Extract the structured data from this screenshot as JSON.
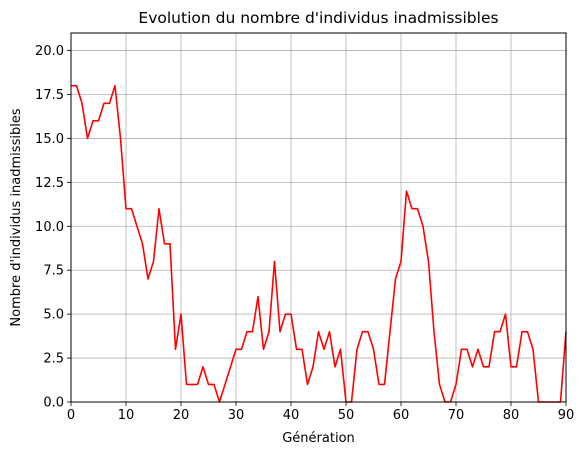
{
  "chart_data": {
    "type": "line",
    "title": "Evolution du nombre d'individus inadmissibles",
    "xlabel": "Génération",
    "ylabel": "Nombre d'individus inadmissibles",
    "xlim": [
      0,
      90
    ],
    "ylim": [
      0,
      21
    ],
    "grid": true,
    "x_ticks": [
      "0",
      "10",
      "20",
      "30",
      "40",
      "50",
      "60",
      "70",
      "80",
      "90"
    ],
    "x_tick_values": [
      0,
      10,
      20,
      30,
      40,
      50,
      60,
      70,
      80,
      90
    ],
    "y_ticks": [
      "0.0",
      "2.5",
      "5.0",
      "7.5",
      "10.0",
      "12.5",
      "15.0",
      "17.5",
      "20.0"
    ],
    "y_tick_values": [
      0,
      2.5,
      5,
      7.5,
      10,
      12.5,
      15,
      17.5,
      20
    ],
    "series": [
      {
        "color": "#ff0000",
        "x": [
          0,
          1,
          2,
          3,
          4,
          5,
          6,
          7,
          8,
          9,
          10,
          11,
          12,
          13,
          14,
          15,
          16,
          17,
          18,
          19,
          20,
          21,
          22,
          23,
          24,
          25,
          26,
          27,
          28,
          29,
          30,
          31,
          32,
          33,
          34,
          35,
          36,
          37,
          38,
          39,
          40,
          41,
          42,
          43,
          44,
          45,
          46,
          47,
          48,
          49,
          50,
          51,
          52,
          53,
          54,
          55,
          56,
          57,
          58,
          59,
          60,
          61,
          62,
          63,
          64,
          65,
          66,
          67,
          68,
          69,
          70,
          71,
          72,
          73,
          74,
          75,
          76,
          77,
          78,
          79,
          80,
          81,
          82,
          83,
          84,
          85,
          86,
          87,
          88,
          89,
          90
        ],
        "values": [
          18,
          18,
          17,
          15,
          16,
          16,
          17,
          17,
          18,
          15,
          11,
          11,
          10,
          9,
          7,
          8,
          11,
          9,
          9,
          3,
          5,
          1,
          1,
          1,
          2,
          1,
          1,
          0,
          1,
          2,
          3,
          3,
          4,
          4,
          6,
          3,
          4,
          8,
          4,
          5,
          5,
          3,
          3,
          1,
          2,
          4,
          3,
          4,
          2,
          3,
          0,
          0,
          3,
          4,
          4,
          3,
          1,
          1,
          4,
          7,
          8,
          12,
          11,
          11,
          10,
          8,
          4,
          1,
          0,
          0,
          1,
          3,
          3,
          2,
          3,
          2,
          2,
          4,
          4,
          5,
          2,
          2,
          4,
          4,
          3,
          0,
          0,
          0,
          0,
          0,
          4
        ]
      }
    ]
  }
}
